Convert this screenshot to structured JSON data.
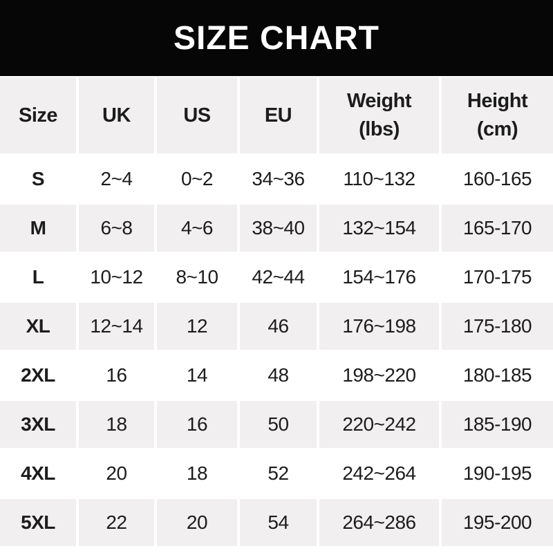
{
  "title": "SIZE CHART",
  "colors": {
    "title_bar_bg": "#060606",
    "title_text": "#ffffff",
    "header_row_bg": "#f1efef",
    "row_alt_bg": "#f1efef",
    "row_bg": "#ffffff",
    "text": "#1c1c1c"
  },
  "chart_data": {
    "type": "table",
    "title": "SIZE CHART",
    "columns": [
      {
        "label": "Size",
        "sub": ""
      },
      {
        "label": "UK",
        "sub": ""
      },
      {
        "label": "US",
        "sub": ""
      },
      {
        "label": "EU",
        "sub": ""
      },
      {
        "label": "Weight",
        "sub": "(lbs)"
      },
      {
        "label": "Height",
        "sub": "(cm)"
      }
    ],
    "rows": [
      {
        "size": "S",
        "uk": "2~4",
        "us": "0~2",
        "eu": "34~36",
        "weight": "110~132",
        "height": "160-165"
      },
      {
        "size": "M",
        "uk": "6~8",
        "us": "4~6",
        "eu": "38~40",
        "weight": "132~154",
        "height": "165-170"
      },
      {
        "size": "L",
        "uk": "10~12",
        "us": "8~10",
        "eu": "42~44",
        "weight": "154~176",
        "height": "170-175"
      },
      {
        "size": "XL",
        "uk": "12~14",
        "us": "12",
        "eu": "46",
        "weight": "176~198",
        "height": "175-180"
      },
      {
        "size": "2XL",
        "uk": "16",
        "us": "14",
        "eu": "48",
        "weight": "198~220",
        "height": "180-185"
      },
      {
        "size": "3XL",
        "uk": "18",
        "us": "16",
        "eu": "50",
        "weight": "220~242",
        "height": "185-190"
      },
      {
        "size": "4XL",
        "uk": "20",
        "us": "18",
        "eu": "52",
        "weight": "242~264",
        "height": "190-195"
      },
      {
        "size": "5XL",
        "uk": "22",
        "us": "20",
        "eu": "54",
        "weight": "264~286",
        "height": "195-200"
      }
    ]
  }
}
